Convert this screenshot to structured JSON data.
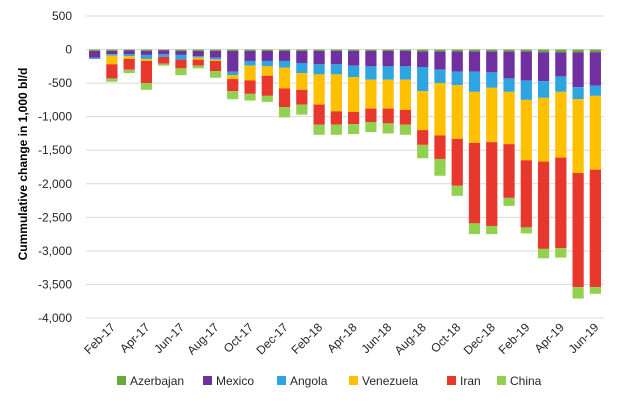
{
  "chart_data": {
    "type": "bar",
    "stacked": true,
    "title": "",
    "xlabel": "",
    "ylabel": "Cummulative change in 1,000 bl/d",
    "ylim": [
      -4000,
      500
    ],
    "yticks": [
      500,
      0,
      -500,
      -1000,
      -1500,
      -2000,
      -2500,
      -3000,
      -3500,
      -4000
    ],
    "ytick_labels": [
      "500",
      "0",
      "-500",
      "-1,000",
      "-1,500",
      "-2,000",
      "-2,500",
      "-3,000",
      "-3,500",
      "-4,000"
    ],
    "grid": true,
    "legend_position": "bottom",
    "categories": [
      "Jan-17",
      "Feb-17",
      "Mar-17",
      "Apr-17",
      "May-17",
      "Jun-17",
      "Jul-17",
      "Aug-17",
      "Sep-17",
      "Oct-17",
      "Nov-17",
      "Dec-17",
      "Jan-18",
      "Feb-18",
      "Mar-18",
      "Apr-18",
      "May-18",
      "Jun-18",
      "Jul-18",
      "Aug-18",
      "Sep-18",
      "Oct-18",
      "Nov-18",
      "Dec-18",
      "Jan-19",
      "Feb-19",
      "Mar-19",
      "Apr-19",
      "May-19",
      "Jun-19"
    ],
    "visible_x_labels": [
      "Feb-17",
      "Apr-17",
      "Jun-17",
      "Aug-17",
      "Oct-17",
      "Dec-17",
      "Feb-18",
      "Apr-18",
      "Jun-18",
      "Aug-18",
      "Oct-18",
      "Dec-18",
      "Feb-19",
      "Apr-19",
      "Jun-19"
    ],
    "series": [
      {
        "name": "Azerbajan",
        "color": "#6aaa3c",
        "values": [
          -20,
          -20,
          -10,
          -20,
          -10,
          -20,
          -20,
          -20,
          -20,
          -20,
          -20,
          -20,
          -20,
          -20,
          -20,
          -20,
          -20,
          -20,
          -20,
          -30,
          -30,
          -30,
          -30,
          -30,
          -30,
          -30,
          -40,
          -40,
          -40,
          -40
        ]
      },
      {
        "name": "Mexico",
        "color": "#7030a0",
        "values": [
          -100,
          -50,
          -60,
          -60,
          -60,
          -60,
          -80,
          -100,
          -310,
          -150,
          -150,
          -150,
          -180,
          -200,
          -200,
          -220,
          -230,
          -230,
          -230,
          -230,
          -270,
          -300,
          -300,
          -310,
          -400,
          -430,
          -430,
          -360,
          -520,
          -500
        ]
      },
      {
        "name": "Angola",
        "color": "#2ea5e0",
        "values": [
          -20,
          -20,
          -30,
          -60,
          -40,
          -70,
          -20,
          -30,
          -50,
          -70,
          -80,
          -100,
          -150,
          -150,
          -150,
          -170,
          -200,
          -200,
          -200,
          -360,
          -200,
          -200,
          -300,
          -230,
          -200,
          -290,
          -250,
          -230,
          -180,
          -150
        ]
      },
      {
        "name": "Venezuela",
        "color": "#ffc000",
        "values": [
          0,
          -130,
          -40,
          -30,
          0,
          0,
          -30,
          -20,
          -60,
          -220,
          -140,
          -310,
          -250,
          -450,
          -550,
          -520,
          -430,
          -430,
          -450,
          -580,
          -780,
          -800,
          -760,
          -810,
          -780,
          -900,
          -950,
          -980,
          -1100,
          -1100
        ]
      },
      {
        "name": "Iran",
        "color": "#e8372c",
        "values": [
          0,
          -210,
          -160,
          -330,
          -100,
          -130,
          -90,
          -150,
          -180,
          -200,
          -300,
          -280,
          -220,
          -300,
          -200,
          -180,
          -200,
          -220,
          -220,
          -220,
          -350,
          -700,
          -1200,
          -1250,
          -800,
          -1000,
          -1300,
          -1350,
          -1700,
          -1750
        ]
      },
      {
        "name": "China",
        "color": "#92d050",
        "values": [
          0,
          -50,
          -50,
          -100,
          -30,
          -100,
          -40,
          -100,
          -120,
          -100,
          -90,
          -150,
          -150,
          -150,
          -150,
          -150,
          -150,
          -150,
          -150,
          -200,
          -250,
          -150,
          -160,
          -120,
          -120,
          -90,
          -140,
          -140,
          -170,
          -100
        ]
      }
    ]
  }
}
